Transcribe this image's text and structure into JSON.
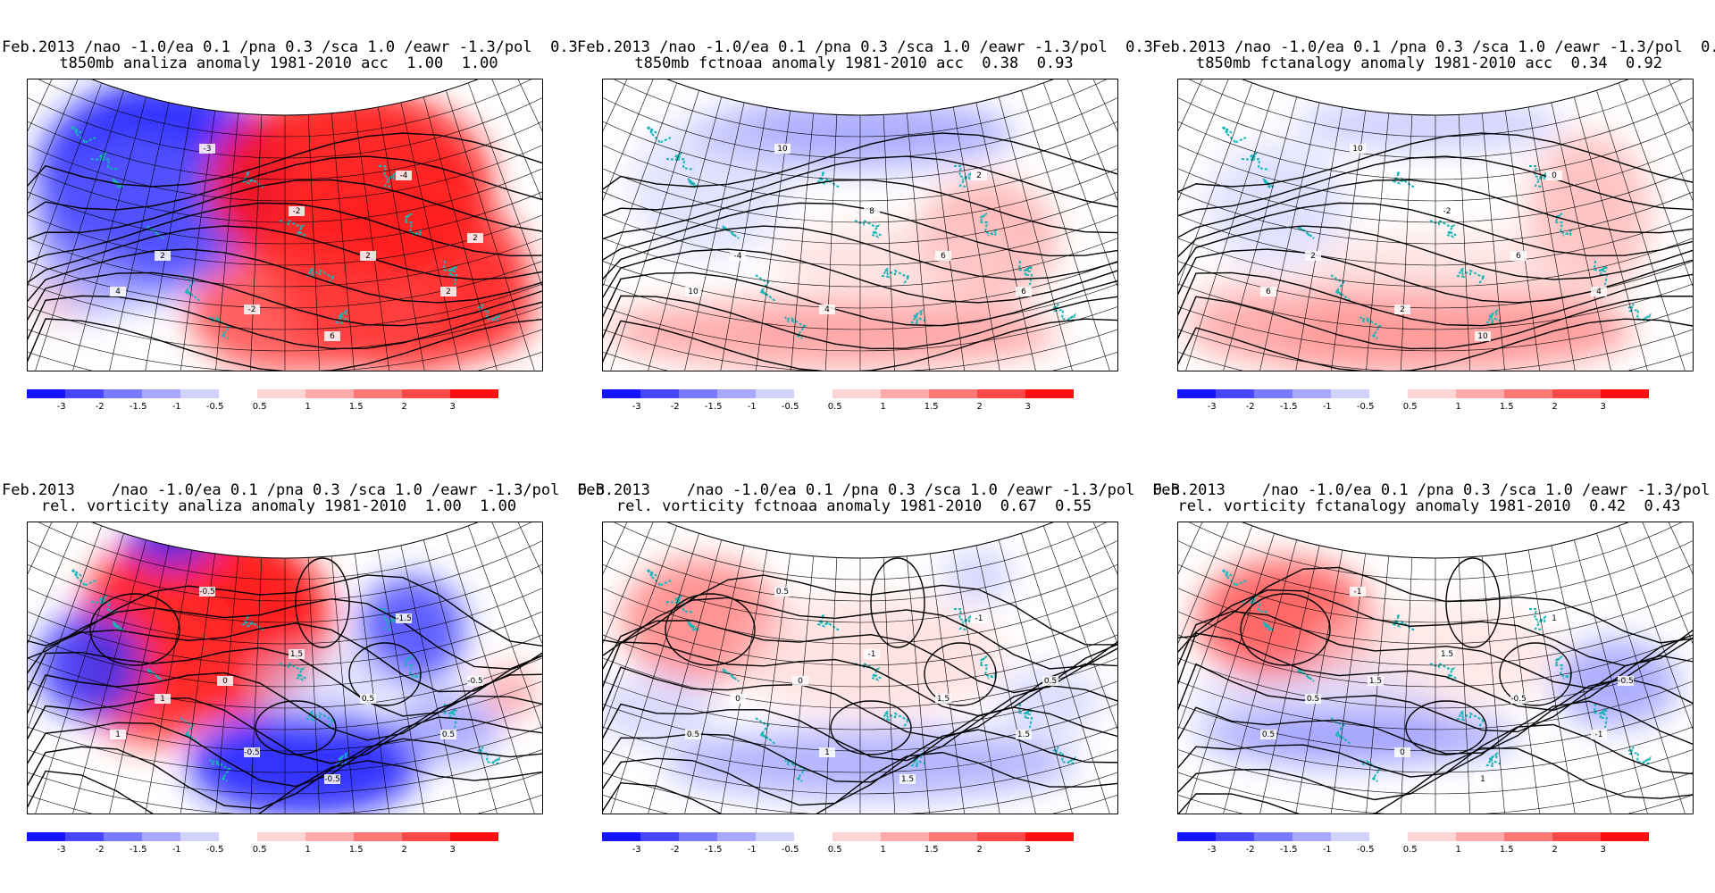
{
  "panels": [
    {
      "line1": "Feb.2013 /nao -1.0/ea 0.1 /pna 0.3 /sca 1.0 /eawr -1.3/pol  0.3",
      "line2": "t850mb analiza anomaly 1981-2010 acc  1.00  1.00",
      "pattern": "t-anal",
      "contour_labels": [
        "-3",
        "-2",
        "2",
        "2",
        "-4",
        "-2",
        "2",
        "4",
        "6",
        "2"
      ]
    },
    {
      "line1": "Feb.2013 /nao -1.0/ea 0.1 /pna 0.3 /sca 1.0 /eawr -1.3/pol  0.3",
      "line2": "t850mb fctnoaa anomaly 1981-2010 acc  0.38  0.93",
      "pattern": "t-fc1",
      "contour_labels": [
        "10",
        "8",
        "6",
        "-4",
        "2",
        "4",
        "6",
        "10"
      ]
    },
    {
      "line1": "Feb.2013 /nao -1.0/ea 0.1 /pna 0.3 /sca 1.0 /eawr -1.3/pol  0.3",
      "line2": "t850mb fctanalogy anomaly 1981-2010 acc  0.34  0.92",
      "pattern": "t-fc2",
      "contour_labels": [
        "10",
        "-2",
        "6",
        "2",
        "0",
        "2",
        "4",
        "6",
        "10"
      ]
    },
    {
      "line1": "Feb.2013    /nao -1.0/ea 0.1 /pna 0.3 /sca 1.0 /eawr -1.3/pol  0.3",
      "line2": "rel. vorticity analiza anomaly 1981-2010  1.00  1.00",
      "pattern": "v-anal",
      "contour_labels": [
        "-0.5",
        "1.5",
        "0.5",
        "1",
        "-1.5",
        "-0.5",
        "0.5",
        "1",
        "-0.5",
        "-0.5",
        "0"
      ]
    },
    {
      "line1": "Feb.2013    /nao -1.0/ea 0.1 /pna 0.3 /sca 1.0 /eawr -1.3/pol  0.3",
      "line2": "rel. vorticity fctnoaa anomaly 1981-2010  0.67  0.55",
      "pattern": "v-fc1",
      "contour_labels": [
        "0.5",
        "-1",
        "1.5",
        "0",
        "-1",
        "1",
        "1.5",
        "0.5",
        "1.5",
        "0.5",
        "0"
      ]
    },
    {
      "line1": "Feb.2013    /nao -1.0/ea 0.1 /pna 0.3 /sca 1.0 /eawr -1.3/pol  0.3",
      "line2": "rel. vorticity fctanalogy anomaly 1981-2010  0.42  0.43",
      "pattern": "v-fc2",
      "contour_labels": [
        "-1",
        "1.5",
        "-0.5",
        "0.5",
        "1",
        "0",
        "-1",
        "0.5",
        "1",
        "-0.5",
        "1.5"
      ]
    }
  ],
  "legend": {
    "labels": [
      "-3",
      "-2",
      "-1.5",
      "-1",
      "-0.5",
      "0.5",
      "1",
      "1.5",
      "2",
      "3"
    ],
    "colors": [
      "#1414ff",
      "#4646ff",
      "#7a7aff",
      "#a8a8ff",
      "#d2d2ff",
      "#ffd4d4",
      "#ffa8a8",
      "#ff7878",
      "#ff4848",
      "#ff1010"
    ]
  }
}
